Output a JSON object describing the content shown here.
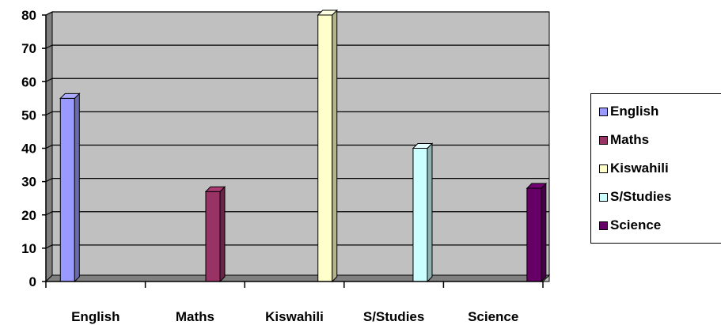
{
  "chart_data": {
    "type": "bar",
    "categories": [
      "English",
      "Maths",
      "Kiswahili",
      "S/Studies",
      "Science"
    ],
    "values": [
      55,
      27,
      80,
      40,
      28
    ],
    "series": [
      {
        "name": "English",
        "color": "#9999ff"
      },
      {
        "name": "Maths",
        "color": "#993366"
      },
      {
        "name": "Kiswahili",
        "color": "#ffffcc"
      },
      {
        "name": "S/Studies",
        "color": "#ccffff"
      },
      {
        "name": "Science",
        "color": "#660066"
      }
    ],
    "ylim": [
      0,
      80
    ],
    "yticks": [
      "0",
      "10",
      "20",
      "30",
      "40",
      "50",
      "60",
      "70",
      "80"
    ],
    "grid": true,
    "legend_position": "right",
    "plot_background": "#c0c0c0"
  }
}
